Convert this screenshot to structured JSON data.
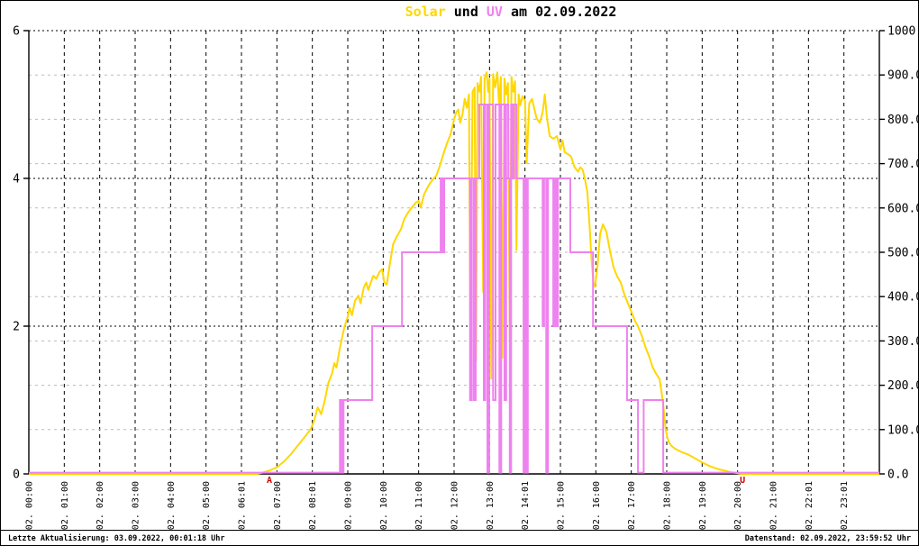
{
  "title": {
    "solar": "Solar",
    "mid": " und ",
    "uv": "UV",
    "date": " am 02.09.2022"
  },
  "footer": {
    "left": "Letzte Aktualisierung: 03.09.2022, 00:01:18 Uhr",
    "right": "Datenstand: 02.09.2022, 23:59:52 Uhr"
  },
  "colors": {
    "solar": "#FFD700",
    "uv": "#EE82EE",
    "marker": "#D00000",
    "grid_major": "#000000",
    "grid_minor": "#BBBBBB"
  },
  "chart_data": {
    "type": "line",
    "title": "Solar und UV am 02.09.2022",
    "grid": true,
    "x_axis": {
      "unit": "time",
      "range_hours": [
        0,
        24
      ],
      "tick_hours": [
        0,
        1,
        2,
        3,
        4,
        5,
        6,
        7,
        8,
        9,
        10,
        11,
        12,
        13,
        14,
        15,
        16,
        17,
        18,
        19,
        20,
        21,
        22,
        23
      ],
      "tick_labels": [
        "02. 00:00",
        "02. 01:00",
        "02. 02:00",
        "02. 03:00",
        "02. 04:00",
        "02. 05:00",
        "02. 06:01",
        "02. 07:00",
        "02. 08:01",
        "02. 09:00",
        "02. 10:00",
        "02. 11:00",
        "02. 12:00",
        "02. 13:00",
        "02. 14:01",
        "02. 15:00",
        "02. 16:00",
        "02. 17:00",
        "02. 18:00",
        "02. 19:00",
        "02. 20:00",
        "02. 21:00",
        "02. 22:01",
        "02. 23:01"
      ]
    },
    "left_axis": {
      "series": "UV",
      "range": [
        0,
        6
      ],
      "ticks": [
        0,
        2,
        4,
        6
      ],
      "tick_labels": [
        "0",
        "2",
        "4",
        "6"
      ]
    },
    "right_axis": {
      "series": "Solar",
      "range": [
        0,
        1000
      ],
      "ticks": [
        0,
        100,
        200,
        300,
        400,
        500,
        600,
        700,
        800,
        900,
        1000
      ],
      "tick_labels": [
        "0.0",
        "100.0",
        "200.0",
        "300.0",
        "400.0",
        "500.0",
        "600.0",
        "700.0",
        "800.0",
        "900.0",
        "1000"
      ]
    },
    "series": [
      {
        "name": "Solar",
        "color": "#FFD700",
        "axis": "right",
        "style": "line",
        "points": [
          [
            0,
            0
          ],
          [
            1,
            0
          ],
          [
            2,
            0
          ],
          [
            3,
            0
          ],
          [
            4,
            0
          ],
          [
            5,
            0
          ],
          [
            6,
            0
          ],
          [
            6.4,
            0
          ],
          [
            6.6,
            3
          ],
          [
            6.8,
            8
          ],
          [
            7.0,
            15
          ],
          [
            7.2,
            28
          ],
          [
            7.4,
            45
          ],
          [
            7.6,
            65
          ],
          [
            7.8,
            85
          ],
          [
            7.95,
            100
          ],
          [
            8.05,
            120
          ],
          [
            8.15,
            150
          ],
          [
            8.25,
            135
          ],
          [
            8.35,
            165
          ],
          [
            8.45,
            205
          ],
          [
            8.55,
            225
          ],
          [
            8.62,
            250
          ],
          [
            8.68,
            240
          ],
          [
            8.78,
            285
          ],
          [
            8.9,
            330
          ],
          [
            9.0,
            355
          ],
          [
            9.05,
            375
          ],
          [
            9.12,
            358
          ],
          [
            9.2,
            390
          ],
          [
            9.3,
            402
          ],
          [
            9.36,
            385
          ],
          [
            9.45,
            420
          ],
          [
            9.52,
            432
          ],
          [
            9.58,
            415
          ],
          [
            9.65,
            432
          ],
          [
            9.72,
            447
          ],
          [
            9.8,
            440
          ],
          [
            9.9,
            456
          ],
          [
            9.97,
            462
          ],
          [
            10.03,
            432
          ],
          [
            10.1,
            427
          ],
          [
            10.18,
            470
          ],
          [
            10.28,
            518
          ],
          [
            10.38,
            535
          ],
          [
            10.5,
            552
          ],
          [
            10.6,
            576
          ],
          [
            10.72,
            592
          ],
          [
            10.82,
            602
          ],
          [
            10.92,
            612
          ],
          [
            11.0,
            616
          ],
          [
            11.06,
            601
          ],
          [
            11.15,
            630
          ],
          [
            11.25,
            646
          ],
          [
            11.32,
            656
          ],
          [
            11.42,
            666
          ],
          [
            11.5,
            673
          ],
          [
            11.6,
            696
          ],
          [
            11.7,
            722
          ],
          [
            11.8,
            746
          ],
          [
            11.9,
            766
          ],
          [
            12.0,
            800
          ],
          [
            12.06,
            816
          ],
          [
            12.12,
            822
          ],
          [
            12.17,
            792
          ],
          [
            12.24,
            812
          ],
          [
            12.3,
            846
          ],
          [
            12.36,
            826
          ],
          [
            12.42,
            856
          ],
          [
            12.46,
            310
          ],
          [
            12.52,
            862
          ],
          [
            12.58,
            872
          ],
          [
            12.62,
            255
          ],
          [
            12.66,
            882
          ],
          [
            12.72,
            862
          ],
          [
            12.76,
            896
          ],
          [
            12.82,
            410
          ],
          [
            12.86,
            892
          ],
          [
            12.92,
            906
          ],
          [
            12.96,
            862
          ],
          [
            13.0,
            892
          ],
          [
            13.05,
            215
          ],
          [
            13.1,
            902
          ],
          [
            13.16,
            872
          ],
          [
            13.22,
            906
          ],
          [
            13.27,
            832
          ],
          [
            13.32,
            896
          ],
          [
            13.36,
            262
          ],
          [
            13.42,
            892
          ],
          [
            13.47,
            856
          ],
          [
            13.52,
            882
          ],
          [
            13.57,
            305
          ],
          [
            13.62,
            896
          ],
          [
            13.67,
            862
          ],
          [
            13.72,
            886
          ],
          [
            13.76,
            505
          ],
          [
            13.82,
            856
          ],
          [
            13.87,
            832
          ],
          [
            13.93,
            852
          ],
          [
            14.0,
            842
          ],
          [
            14.05,
            702
          ],
          [
            14.12,
            836
          ],
          [
            14.2,
            846
          ],
          [
            14.27,
            822
          ],
          [
            14.33,
            802
          ],
          [
            14.42,
            792
          ],
          [
            14.5,
            816
          ],
          [
            14.56,
            856
          ],
          [
            14.62,
            802
          ],
          [
            14.7,
            762
          ],
          [
            14.8,
            756
          ],
          [
            14.9,
            762
          ],
          [
            15.0,
            732
          ],
          [
            15.06,
            752
          ],
          [
            15.12,
            726
          ],
          [
            15.2,
            722
          ],
          [
            15.3,
            716
          ],
          [
            15.4,
            692
          ],
          [
            15.5,
            682
          ],
          [
            15.56,
            692
          ],
          [
            15.63,
            686
          ],
          [
            15.7,
            662
          ],
          [
            15.76,
            636
          ],
          [
            15.82,
            562
          ],
          [
            15.88,
            482
          ],
          [
            15.93,
            432
          ],
          [
            15.98,
            422
          ],
          [
            16.05,
            472
          ],
          [
            16.12,
            542
          ],
          [
            16.2,
            563
          ],
          [
            16.3,
            546
          ],
          [
            16.4,
            502
          ],
          [
            16.5,
            466
          ],
          [
            16.6,
            446
          ],
          [
            16.7,
            432
          ],
          [
            16.8,
            406
          ],
          [
            16.9,
            386
          ],
          [
            17.0,
            366
          ],
          [
            17.1,
            346
          ],
          [
            17.2,
            331
          ],
          [
            17.3,
            311
          ],
          [
            17.4,
            286
          ],
          [
            17.5,
            266
          ],
          [
            17.6,
            241
          ],
          [
            17.7,
            226
          ],
          [
            17.8,
            214
          ],
          [
            17.86,
            181
          ],
          [
            17.92,
            141
          ],
          [
            17.97,
            101
          ],
          [
            18.02,
            81
          ],
          [
            18.08,
            69
          ],
          [
            18.15,
            62
          ],
          [
            18.25,
            56
          ],
          [
            18.4,
            50
          ],
          [
            18.6,
            44
          ],
          [
            18.8,
            35
          ],
          [
            19.0,
            26
          ],
          [
            19.2,
            18
          ],
          [
            19.4,
            12
          ],
          [
            19.6,
            8
          ],
          [
            19.8,
            4
          ],
          [
            20.05,
            1
          ],
          [
            20.15,
            0
          ],
          [
            21,
            0
          ],
          [
            22,
            0
          ],
          [
            23,
            0
          ],
          [
            24,
            0
          ]
        ]
      },
      {
        "name": "UV",
        "color": "#EE82EE",
        "axis": "left",
        "style": "step",
        "points": [
          [
            0,
            0
          ],
          [
            8.78,
            1
          ],
          [
            8.83,
            0
          ],
          [
            8.88,
            1
          ],
          [
            9.69,
            2
          ],
          [
            10.53,
            3
          ],
          [
            11.62,
            4
          ],
          [
            11.67,
            3
          ],
          [
            11.72,
            4
          ],
          [
            12.45,
            1
          ],
          [
            12.5,
            4
          ],
          [
            12.56,
            1
          ],
          [
            12.61,
            4
          ],
          [
            12.71,
            5
          ],
          [
            12.84,
            1
          ],
          [
            12.88,
            5
          ],
          [
            12.94,
            0
          ],
          [
            12.99,
            5
          ],
          [
            13.1,
            1
          ],
          [
            13.17,
            5
          ],
          [
            13.28,
            0
          ],
          [
            13.33,
            5
          ],
          [
            13.42,
            1
          ],
          [
            13.47,
            5
          ],
          [
            13.53,
            4
          ],
          [
            13.57,
            0
          ],
          [
            13.61,
            5
          ],
          [
            13.66,
            4
          ],
          [
            13.69,
            5
          ],
          [
            13.76,
            4
          ],
          [
            13.96,
            0
          ],
          [
            14.0,
            4
          ],
          [
            14.04,
            0
          ],
          [
            14.08,
            4
          ],
          [
            14.5,
            2
          ],
          [
            14.54,
            4
          ],
          [
            14.6,
            0
          ],
          [
            14.65,
            4
          ],
          [
            14.8,
            2
          ],
          [
            14.85,
            4
          ],
          [
            14.89,
            2
          ],
          [
            14.93,
            4
          ],
          [
            15.28,
            3
          ],
          [
            15.92,
            2
          ],
          [
            16.88,
            1
          ],
          [
            17.19,
            0
          ],
          [
            17.35,
            1
          ],
          [
            17.9,
            0
          ],
          [
            24,
            0
          ]
        ]
      }
    ],
    "markers": [
      {
        "label": "A",
        "hour": 6.79,
        "color": "#D00000"
      },
      {
        "label": "U",
        "hour": 20.14,
        "color": "#D00000"
      }
    ]
  }
}
